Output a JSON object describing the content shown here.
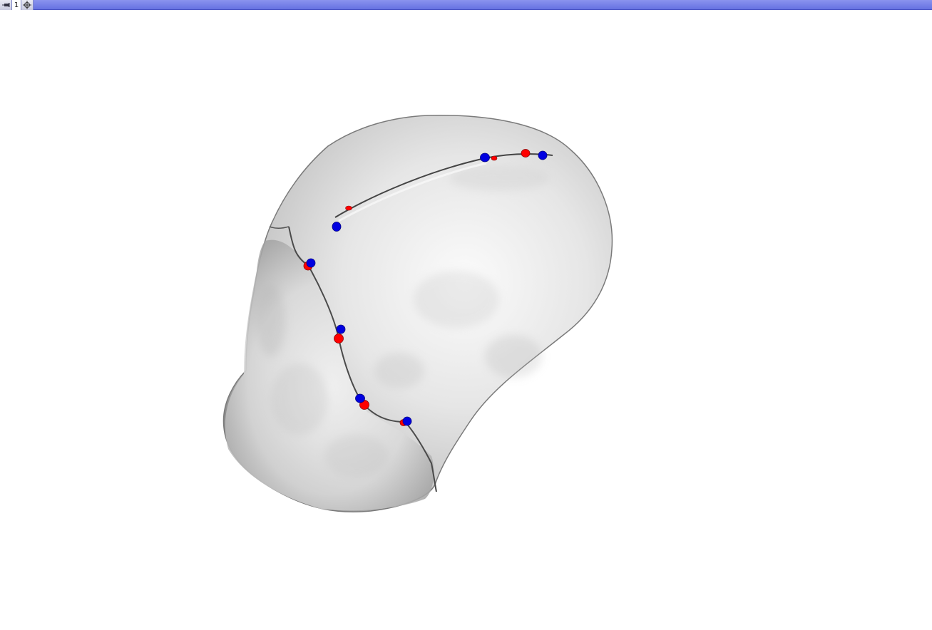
{
  "view_controller": {
    "pin_icon": "pin-icon",
    "layout_number": "1",
    "center_icon": "crosshair-icon"
  },
  "scene": {
    "model": "bone-surface-model",
    "colors": {
      "background": "#ffffff",
      "model": "#d8d8d8",
      "landmark_set_a": "#ff0000",
      "landmark_set_b": "#0000dd",
      "view_bar": "#7680e8"
    }
  }
}
